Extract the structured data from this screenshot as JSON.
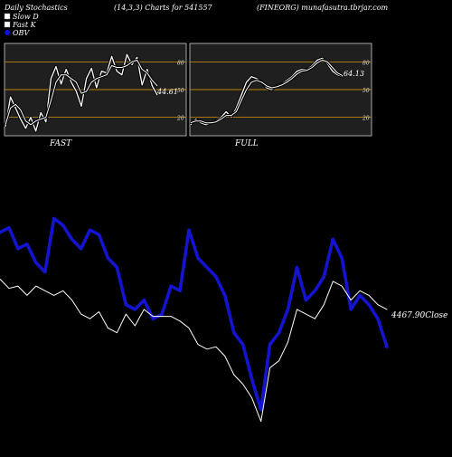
{
  "header": {
    "left": "Daily Stochastics",
    "center": "(14,3,3) Charts for 541557",
    "right": "(FINEORG) munafasutra.tbrjar.com"
  },
  "legend": [
    {
      "label": "Slow  D",
      "color": "#ffffff"
    },
    {
      "label": "Fast  K",
      "color": "#ffffff"
    },
    {
      "label": "OBV",
      "color": "#1010dd"
    }
  ],
  "colors": {
    "background": "#000000",
    "panel_bg": "#1f1f1f",
    "orange_line": "#b8860b",
    "obv": "#1414d0",
    "close": "#ffffff",
    "text": "#ffffff"
  },
  "chart_data": [
    {
      "type": "line",
      "panel": "fast",
      "caption": "FAST",
      "yticks": [
        80,
        50,
        20
      ],
      "orange_levels": [
        80,
        50,
        20
      ],
      "ylim": [
        0,
        100
      ],
      "last_value_label": "44.61",
      "series": [
        {
          "name": "Fast K",
          "values": [
            10,
            42,
            30,
            18,
            8,
            20,
            5,
            25,
            15,
            62,
            75,
            56,
            72,
            58,
            48,
            32,
            62,
            73,
            52,
            70,
            68,
            86,
            70,
            66,
            88,
            77,
            85,
            55,
            72,
            54,
            44
          ]
        },
        {
          "name": "Slow D",
          "values": [
            12,
            30,
            34,
            28,
            16,
            12,
            16,
            18,
            20,
            38,
            58,
            66,
            66,
            62,
            58,
            46,
            48,
            58,
            62,
            64,
            66,
            76,
            74,
            74,
            76,
            80,
            82,
            72,
            68,
            60,
            54
          ]
        }
      ]
    },
    {
      "type": "line",
      "panel": "full",
      "caption": "FULL",
      "yticks": [
        80,
        50,
        20
      ],
      "orange_levels": [
        80,
        50,
        20
      ],
      "ylim": [
        0,
        100
      ],
      "last_value_label": "64.13",
      "series": [
        {
          "name": "Fast K",
          "values": [
            12,
            18,
            14,
            12,
            14,
            16,
            20,
            26,
            20,
            30,
            44,
            58,
            64,
            62,
            58,
            52,
            50,
            54,
            56,
            60,
            64,
            70,
            72,
            72,
            76,
            82,
            84,
            78,
            70,
            66,
            64
          ]
        },
        {
          "name": "Slow D",
          "values": [
            14,
            16,
            16,
            14,
            14,
            15,
            18,
            22,
            22,
            26,
            38,
            50,
            58,
            60,
            58,
            54,
            52,
            53,
            55,
            58,
            62,
            67,
            70,
            71,
            74,
            79,
            82,
            80,
            74,
            68,
            65
          ]
        }
      ]
    },
    {
      "type": "line",
      "panel": "obv",
      "last_value_label": "4467.90Close",
      "series": [
        {
          "name": "OBV",
          "values": [
            73,
            75,
            66,
            68,
            60,
            56,
            79,
            76,
            70,
            66,
            74,
            72,
            62,
            58,
            42,
            40,
            44,
            36,
            38,
            50,
            48,
            74,
            62,
            58,
            54,
            46,
            30,
            25,
            10,
            -3,
            25,
            30,
            40,
            58,
            44,
            48,
            54,
            70,
            62,
            40,
            46,
            42,
            36,
            24
          ]
        },
        {
          "name": "Close",
          "values": [
            53,
            49,
            50,
            46,
            50,
            48,
            46,
            48,
            44,
            38,
            36,
            39,
            32,
            30,
            38,
            33,
            40,
            37,
            37,
            37,
            35,
            32,
            25,
            23,
            24,
            20,
            12,
            8,
            2,
            -8,
            15,
            18,
            26,
            40,
            38,
            36,
            42,
            52,
            50,
            44,
            48,
            46,
            42,
            40
          ]
        }
      ]
    }
  ]
}
